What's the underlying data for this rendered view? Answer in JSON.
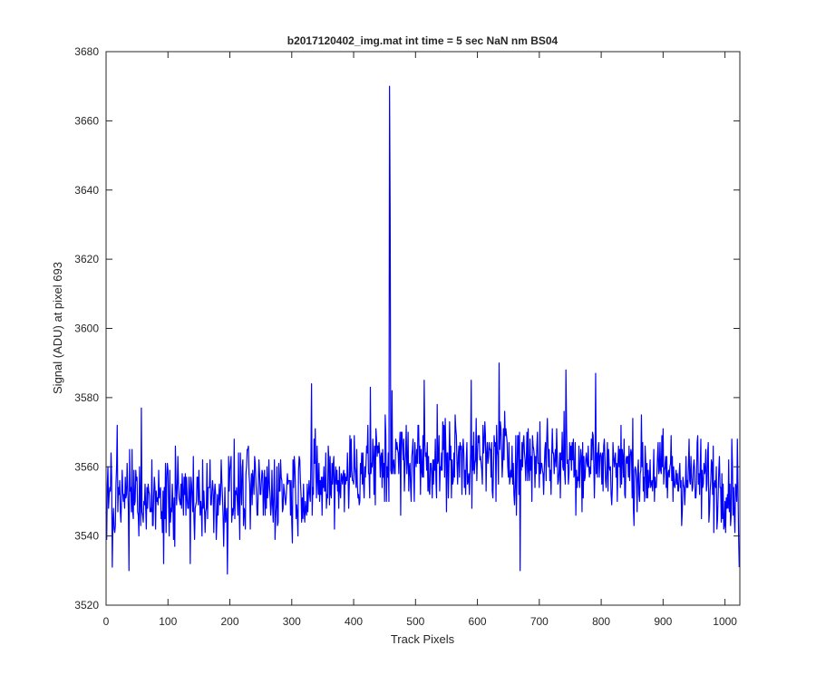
{
  "chart_data": {
    "type": "line",
    "title": "b2017120402_img.mat int time = 5 sec  NaN nm BS04",
    "xlabel": "Track Pixels",
    "ylabel": "Signal (ADU) at pixel 693",
    "xlim": [
      0,
      1024
    ],
    "ylim": [
      3520,
      3680
    ],
    "xticks": [
      0,
      100,
      200,
      300,
      400,
      500,
      600,
      700,
      800,
      900,
      1000
    ],
    "yticks": [
      3520,
      3540,
      3560,
      3580,
      3600,
      3620,
      3640,
      3660,
      3680
    ],
    "grid": false,
    "legend": "none",
    "series": [
      {
        "color": "#0000ff",
        "noise_model": {
          "count": 1024,
          "baseline": [
            [
              0,
              3551
            ],
            [
              100,
              3551
            ],
            [
              250,
              3553
            ],
            [
              350,
              3555
            ],
            [
              420,
              3560
            ],
            [
              500,
              3562
            ],
            [
              600,
              3562
            ],
            [
              700,
              3563
            ],
            [
              800,
              3561
            ],
            [
              900,
              3558
            ],
            [
              1000,
              3555
            ],
            [
              1023,
              3554
            ]
          ],
          "amplitude": 6.5
        },
        "highlights": [
          {
            "x": 10,
            "y": 3531
          },
          {
            "x": 18,
            "y": 3572
          },
          {
            "x": 37,
            "y": 3530
          },
          {
            "x": 57,
            "y": 3577
          },
          {
            "x": 93,
            "y": 3532
          },
          {
            "x": 136,
            "y": 3532
          },
          {
            "x": 196,
            "y": 3529
          },
          {
            "x": 332,
            "y": 3584
          },
          {
            "x": 427,
            "y": 3583
          },
          {
            "x": 458,
            "y": 3670
          },
          {
            "x": 459,
            "y": 3632
          },
          {
            "x": 462,
            "y": 3582
          },
          {
            "x": 514,
            "y": 3585
          },
          {
            "x": 590,
            "y": 3585
          },
          {
            "x": 635,
            "y": 3590
          },
          {
            "x": 669,
            "y": 3530
          },
          {
            "x": 743,
            "y": 3588
          },
          {
            "x": 791,
            "y": 3587
          },
          {
            "x": 1023,
            "y": 3531
          }
        ]
      }
    ]
  }
}
